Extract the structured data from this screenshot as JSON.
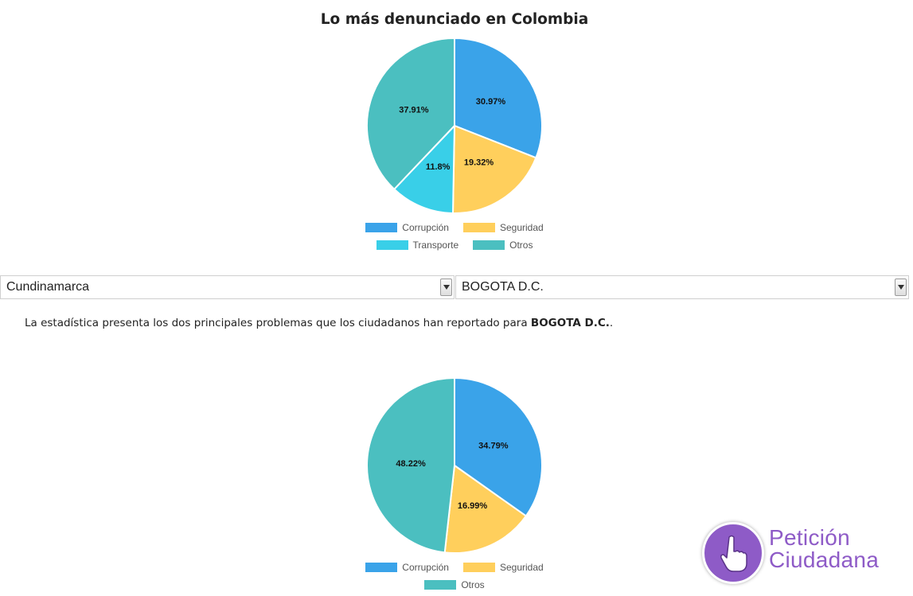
{
  "national": {
    "title": "Lo más denunciado en Colombia"
  },
  "filters": {
    "department": "Cundinamarca",
    "city": "BOGOTA D.C."
  },
  "description": {
    "text": "La estadística presenta los dos principales problemas que los ciudadanos han reportado para ",
    "city": "BOGOTA D.C.",
    "suffix": "."
  },
  "brand": {
    "line1": "Petición",
    "line2": "Ciudadana",
    "color": "#8e5bc7",
    "icon": "pointing-hand-icon"
  },
  "chart_data": [
    {
      "type": "pie",
      "title": "Lo más denunciado en Colombia",
      "labels": [
        "Corrupción",
        "Seguridad",
        "Transporte",
        "Otros"
      ],
      "values": [
        30.97,
        19.32,
        11.8,
        37.91
      ],
      "value_labels": [
        "30.97%",
        "19.32%",
        "11.8%",
        "37.91%"
      ],
      "colors": [
        "#3aa3e9",
        "#ffcf5c",
        "#39cfe8",
        "#4bbfc0"
      ],
      "legend": "bottom"
    },
    {
      "type": "pie",
      "title": "",
      "labels": [
        "Corrupción",
        "Seguridad",
        "Otros"
      ],
      "values": [
        34.79,
        16.99,
        48.22
      ],
      "value_labels": [
        "34.79%",
        "16.99%",
        "48.22%"
      ],
      "colors": [
        "#3aa3e9",
        "#ffcf5c",
        "#4bbfc0"
      ],
      "legend": "bottom"
    }
  ]
}
